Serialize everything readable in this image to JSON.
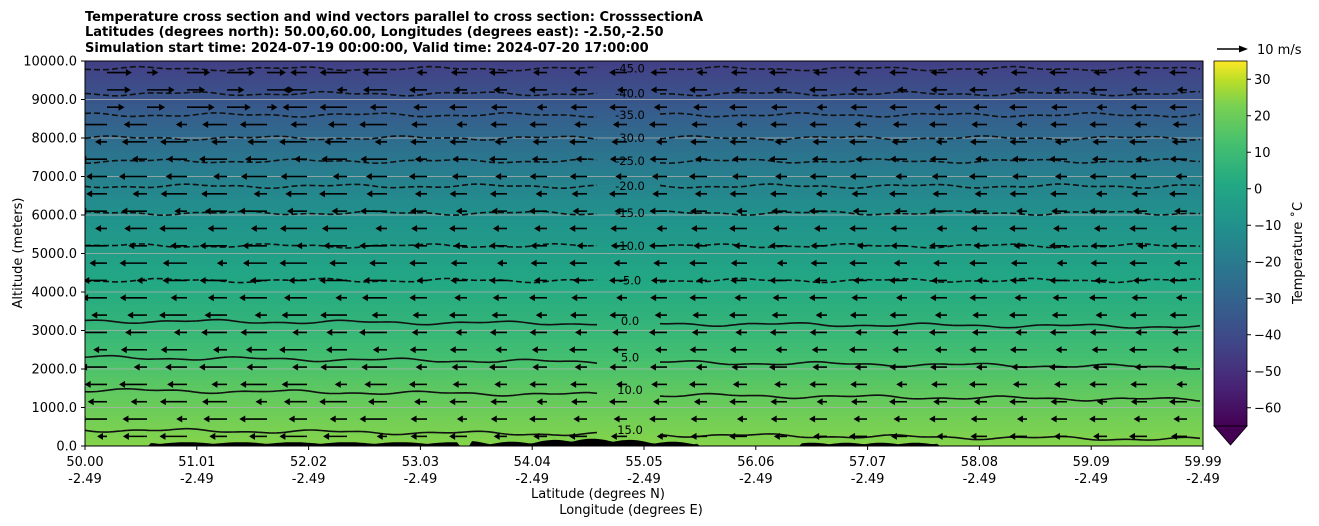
{
  "chart_data": {
    "type": "contour",
    "title_lines": [
      "Temperature cross section and wind vectors parallel to cross section: CrosssectionA",
      "Latitudes (degrees north): 50.00,60.00, Longitudes (degrees east): -2.50,-2.50",
      "Simulation start time: 2024-07-19 00:00:00, Valid time: 2024-07-20 17:00:00"
    ],
    "ylabel": "Altitude (meters)",
    "xlabel": "Latitude (degrees N)",
    "xlabel2": "Longitude (degrees E)",
    "y_ticks": [
      "0.0",
      "1000.0",
      "2000.0",
      "3000.0",
      "4000.0",
      "5000.0",
      "6000.0",
      "7000.0",
      "8000.0",
      "9000.0",
      "10000.0"
    ],
    "y_tick_values": [
      0,
      1000,
      2000,
      3000,
      4000,
      5000,
      6000,
      7000,
      8000,
      9000,
      10000
    ],
    "ylim": [
      0,
      10000
    ],
    "x_ticks": [
      "50.00",
      "51.01",
      "52.02",
      "53.03",
      "54.04",
      "55.05",
      "56.06",
      "57.07",
      "58.08",
      "59.09",
      "59.99"
    ],
    "x_ticks_lon": [
      "-2.49",
      "-2.49",
      "-2.49",
      "-2.49",
      "-2.49",
      "-2.49",
      "-2.49",
      "-2.49",
      "-2.49",
      "-2.49",
      "-2.49"
    ],
    "xlim": [
      50.0,
      59.99
    ],
    "colorbar": {
      "label": "Temperature $^\\circ$C",
      "ticks": [
        "30",
        "20",
        "10",
        "0",
        "−10",
        "−20",
        "−30",
        "−40",
        "−50",
        "−60"
      ],
      "tick_values": [
        30,
        20,
        10,
        0,
        -10,
        -20,
        -30,
        -40,
        -50,
        -60
      ],
      "range": [
        -65,
        35
      ],
      "extend": "min"
    },
    "quiver_key": "10 m/s",
    "contour_levels": [
      {
        "value": 15.0,
        "label": "15.0",
        "mean_alt": 420,
        "dashed": false
      },
      {
        "value": 10.0,
        "label": "10.0",
        "mean_alt": 1450,
        "dashed": false
      },
      {
        "value": 5.0,
        "label": "5.0",
        "mean_alt": 2300,
        "dashed": false
      },
      {
        "value": 0.0,
        "label": "0.0",
        "mean_alt": 3250,
        "dashed": false
      },
      {
        "value": -5.0,
        "label": "-5.0",
        "mean_alt": 4300,
        "dashed": true
      },
      {
        "value": -10.0,
        "label": "-10.0",
        "mean_alt": 5200,
        "dashed": true
      },
      {
        "value": -15.0,
        "label": "-15.0",
        "mean_alt": 6050,
        "dashed": true
      },
      {
        "value": -20.0,
        "label": "-20.0",
        "mean_alt": 6750,
        "dashed": true
      },
      {
        "value": -25.0,
        "label": "-25.0",
        "mean_alt": 7400,
        "dashed": true
      },
      {
        "value": -30.0,
        "label": "-30.0",
        "mean_alt": 8000,
        "dashed": true
      },
      {
        "value": -35.0,
        "label": "-35.0",
        "mean_alt": 8600,
        "dashed": true
      },
      {
        "value": -40.0,
        "label": "-40.0",
        "mean_alt": 9150,
        "dashed": true
      },
      {
        "value": -45.0,
        "label": "-45.0",
        "mean_alt": 9800,
        "dashed": true
      }
    ],
    "grid": true
  }
}
